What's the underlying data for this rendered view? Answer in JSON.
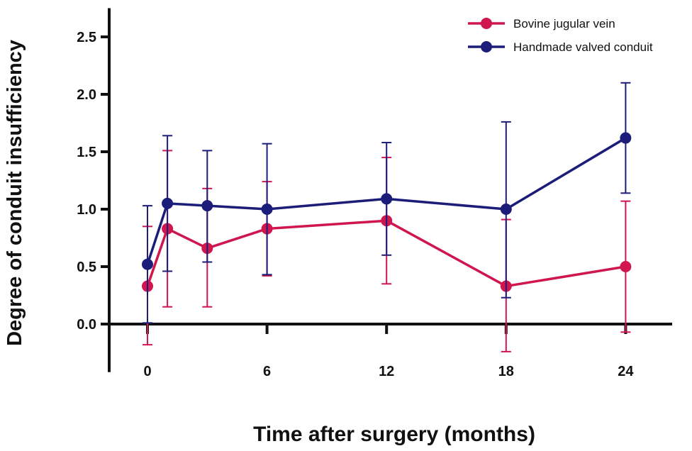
{
  "chart_data": {
    "type": "line",
    "xlabel": "Time after surgery (months)",
    "ylabel": "Degree of conduit insufficiency",
    "xlim": [
      -1.5,
      27
    ],
    "ylim": [
      -0.4,
      2.75
    ],
    "x_ticks": [
      0,
      6,
      12,
      18,
      24
    ],
    "y_ticks": [
      0.0,
      0.5,
      1.0,
      1.5,
      2.0,
      2.5
    ],
    "y_tick_labels": [
      "0.0",
      "0.5",
      "1.0",
      "1.5",
      "2.0",
      "2.5"
    ],
    "grid": false,
    "legend_position": "top-right",
    "series": [
      {
        "name": "Bovine jugular vein",
        "color": "#d0164f",
        "points": [
          {
            "x": 0,
            "y": 0.33,
            "err_low": -0.18,
            "err_high": 0.85
          },
          {
            "x": 1,
            "y": 0.83,
            "err_low": 0.15,
            "err_high": 1.51
          },
          {
            "x": 3,
            "y": 0.66,
            "err_low": 0.15,
            "err_high": 1.18
          },
          {
            "x": 6,
            "y": 0.83,
            "err_low": 0.42,
            "err_high": 1.24
          },
          {
            "x": 12,
            "y": 0.9,
            "err_low": 0.35,
            "err_high": 1.45
          },
          {
            "x": 18,
            "y": 0.33,
            "err_low": -0.24,
            "err_high": 0.91
          },
          {
            "x": 24,
            "y": 0.5,
            "err_low": -0.07,
            "err_high": 1.07
          }
        ]
      },
      {
        "name": "Handmade valved conduit",
        "color": "#1b1d79",
        "points": [
          {
            "x": 0,
            "y": 0.52,
            "err_low": 0.01,
            "err_high": 1.03
          },
          {
            "x": 1,
            "y": 1.05,
            "err_low": 0.46,
            "err_high": 1.64
          },
          {
            "x": 3,
            "y": 1.03,
            "err_low": 0.54,
            "err_high": 1.51
          },
          {
            "x": 6,
            "y": 1.0,
            "err_low": 0.43,
            "err_high": 1.57
          },
          {
            "x": 12,
            "y": 1.09,
            "err_low": 0.6,
            "err_high": 1.58
          },
          {
            "x": 18,
            "y": 1.0,
            "err_low": 0.23,
            "err_high": 1.76
          },
          {
            "x": 24,
            "y": 1.62,
            "err_low": 1.14,
            "err_high": 2.1
          }
        ]
      }
    ]
  }
}
